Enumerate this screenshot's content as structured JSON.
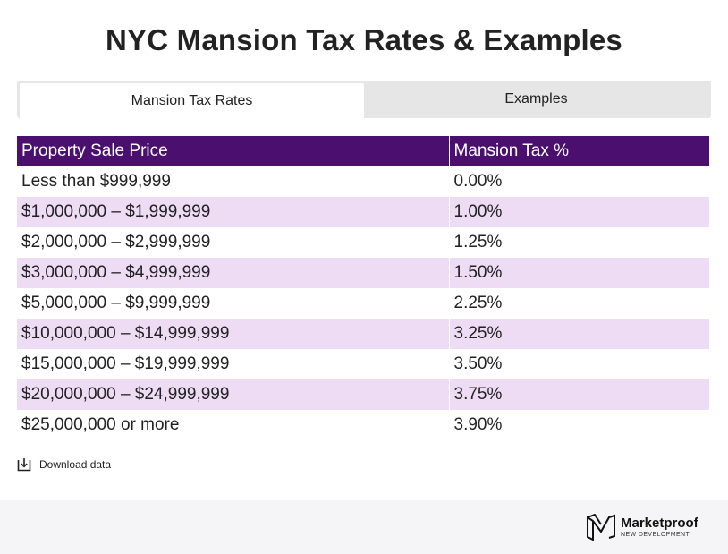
{
  "title": "NYC Mansion Tax Rates & Examples",
  "tabs": [
    {
      "label": "Mansion Tax Rates",
      "active": true
    },
    {
      "label": "Examples",
      "active": false
    }
  ],
  "table": {
    "headers": [
      "Property Sale Price",
      "Mansion Tax %"
    ],
    "rows": [
      [
        "Less than $999,999",
        "0.00%"
      ],
      [
        "$1,000,000 – $1,999,999",
        "1.00%"
      ],
      [
        "$2,000,000 – $2,999,999",
        "1.25%"
      ],
      [
        "$3,000,000 – $4,999,999",
        "1.50%"
      ],
      [
        "$5,000,000 – $9,999,999",
        "2.25%"
      ],
      [
        "$10,000,000 – $14,999,999",
        "3.25%"
      ],
      [
        "$15,000,000 – $19,999,999",
        "3.50%"
      ],
      [
        "$20,000,000 – $24,999,999",
        "3.75%"
      ],
      [
        "$25,000,000 or more",
        "3.90%"
      ]
    ]
  },
  "download": {
    "label": "Download data",
    "icon": "download-icon"
  },
  "logo": {
    "name": "Marketproof",
    "subtitle": "NEW DEVELOPMENT",
    "icon": "marketproof-logo-icon"
  },
  "colors": {
    "header_bg": "#4b0f6f",
    "row_alt": "#eddcf4",
    "tab_bg": "#e6e6e6"
  }
}
